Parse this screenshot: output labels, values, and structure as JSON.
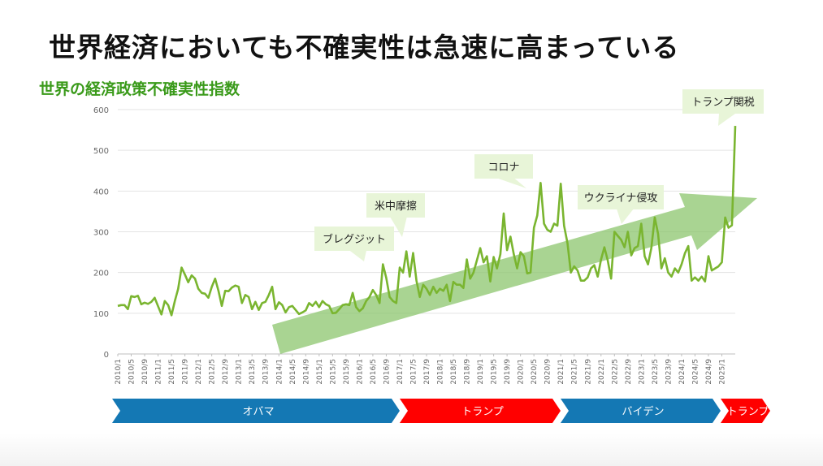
{
  "slide": {
    "title": "世界経済においても不確実性は急速に高まっている"
  },
  "colors": {
    "line": "#7ab530",
    "title_green": "#3a9a1a",
    "arrow_green": "#8cc66e",
    "callout_bg": "#e8f5d8",
    "obama": "#1478b4",
    "trump": "#ff0000",
    "biden": "#1478b4",
    "grid": "#e3e3e3",
    "axis_text": "#666666"
  },
  "chart_data": {
    "type": "line",
    "title": "世界の経済政策不確実性指数",
    "xlabel": "",
    "ylabel": "",
    "ylim": [
      0,
      600
    ],
    "yticks": [
      0,
      100,
      200,
      300,
      400,
      500,
      600
    ],
    "grid": true,
    "x_tick_labels": [
      "2010/1",
      "2010/5",
      "2010/9",
      "2011/1",
      "2011/5",
      "2011/9",
      "2012/1",
      "2012/5",
      "2012/9",
      "2013/1",
      "2013/5",
      "2013/9",
      "2014/1",
      "2014/5",
      "2014/9",
      "2015/1",
      "2015/5",
      "2015/9",
      "2016/1",
      "2016/5",
      "2016/9",
      "2017/1",
      "2017/5",
      "2017/9",
      "2018/1",
      "2018/5",
      "2018/9",
      "2019/1",
      "2019/5",
      "2019/9",
      "2020/1",
      "2020/5",
      "2020/9",
      "2021/1",
      "2021/5",
      "2021/9",
      "2022/1",
      "2022/5",
      "2022/9",
      "2023/1",
      "2023/5",
      "2023/9",
      "2024/1",
      "2024/5",
      "2024/9",
      "2025/1"
    ],
    "x_start": "2010/1",
    "x_end": "2025/5",
    "series": [
      {
        "name": "",
        "values": [
          118,
          120,
          120,
          110,
          142,
          140,
          143,
          122,
          126,
          123,
          128,
          138,
          117,
          97,
          130,
          120,
          95,
          130,
          160,
          212,
          195,
          176,
          193,
          185,
          160,
          150,
          148,
          138,
          165,
          185,
          155,
          118,
          155,
          154,
          163,
          168,
          165,
          125,
          145,
          140,
          110,
          128,
          108,
          125,
          128,
          145,
          165,
          110,
          127,
          120,
          102,
          115,
          118,
          108,
          98,
          102,
          107,
          125,
          118,
          128,
          115,
          130,
          122,
          118,
          100,
          101,
          110,
          120,
          122,
          120,
          150,
          115,
          105,
          112,
          130,
          140,
          157,
          145,
          125,
          220,
          187,
          140,
          130,
          125,
          212,
          200,
          252,
          190,
          248,
          180,
          140,
          170,
          160,
          145,
          165,
          150,
          160,
          155,
          170,
          130,
          177,
          170,
          170,
          162,
          232,
          185,
          200,
          230,
          260,
          225,
          240,
          178,
          238,
          210,
          245,
          345,
          255,
          288,
          245,
          210,
          250,
          240,
          198,
          200,
          310,
          340,
          420,
          320,
          305,
          300,
          320,
          315,
          418,
          315,
          272,
          200,
          215,
          205,
          180,
          180,
          188,
          210,
          218,
          190,
          232,
          262,
          230,
          185,
          300,
          290,
          280,
          262,
          300,
          242,
          260,
          265,
          320,
          240,
          220,
          260,
          335,
          295,
          210,
          235,
          200,
          190,
          210,
          200,
          220,
          247,
          265,
          180,
          188,
          180,
          190,
          178,
          240,
          205,
          210,
          215,
          225,
          335,
          310,
          316,
          560
        ]
      }
    ],
    "eras": [
      {
        "label": "オバマ",
        "from": "2010/1",
        "to": "2017/1"
      },
      {
        "label": "トランプ",
        "from": "2017/1",
        "to": "2021/1"
      },
      {
        "label": "バイデン",
        "from": "2021/1",
        "to": "2025/1"
      },
      {
        "label": "トランプ",
        "from": "2025/1",
        "to": "2025/5"
      }
    ],
    "annotations": [
      {
        "label": "ブレグジット",
        "at": "2016/6"
      },
      {
        "label": "米中摩擦",
        "at": "2017/3"
      },
      {
        "label": "コロナ",
        "at": "2020/3"
      },
      {
        "label": "ウクライナ侵攻",
        "at": "2022/3"
      },
      {
        "label": "トランプ関税",
        "at": "2025/4"
      }
    ]
  }
}
